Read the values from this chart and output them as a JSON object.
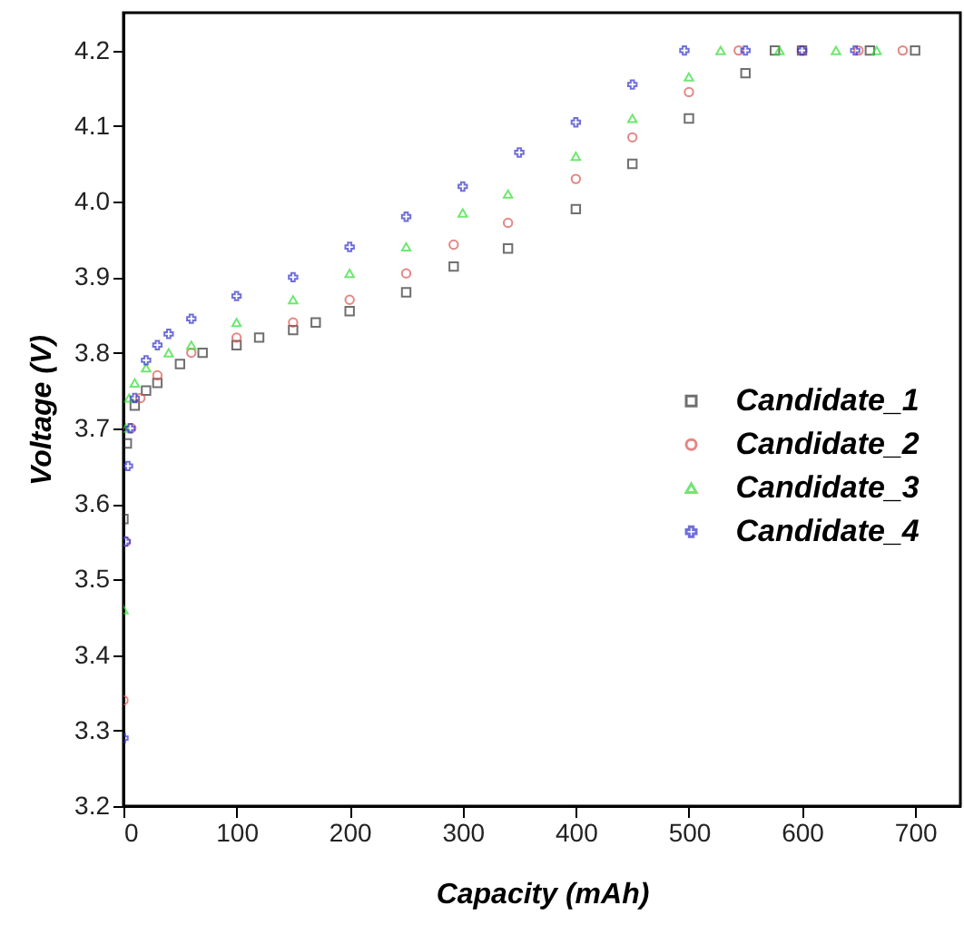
{
  "chart_data": {
    "type": "scatter",
    "xlabel": "Capacity (mAh)",
    "ylabel": "Voltage (V)",
    "xlim": [
      0,
      740
    ],
    "ylim": [
      3.2,
      4.25
    ],
    "xticks": [
      0,
      100,
      200,
      300,
      400,
      500,
      600,
      700
    ],
    "yticks": [
      3.2,
      3.3,
      3.4,
      3.5,
      3.6,
      3.7,
      3.8,
      3.9,
      {
        "value": 4,
        "label": "4.0"
      },
      4.1,
      4.2
    ],
    "grid": false,
    "legend": "right",
    "series": [
      {
        "name": "Candidate_1",
        "color": "#333333",
        "marker": "square",
        "x": [
          0,
          3,
          10,
          20,
          30,
          50,
          70,
          100,
          120,
          150,
          170,
          200,
          250,
          292,
          340,
          400,
          450,
          500,
          550,
          576,
          600,
          660,
          700
        ],
        "values": [
          3.58,
          3.68,
          3.73,
          3.75,
          3.76,
          3.785,
          3.8,
          3.81,
          3.82,
          3.83,
          3.84,
          3.855,
          3.88,
          3.914,
          3.938,
          3.99,
          4.05,
          4.11,
          4.17,
          4.2,
          4.2,
          4.2,
          4.2
        ]
      },
      {
        "name": "Candidate_2",
        "color": "#d9534f",
        "marker": "circle",
        "x": [
          0,
          2,
          7,
          15,
          30,
          60,
          100,
          150,
          200,
          250,
          292,
          340,
          400,
          450,
          500,
          544,
          600,
          650,
          689
        ],
        "values": [
          3.34,
          3.55,
          3.7,
          3.74,
          3.77,
          3.8,
          3.82,
          3.84,
          3.87,
          3.905,
          3.943,
          3.972,
          4.03,
          4.085,
          4.145,
          4.2,
          4.2,
          4.2,
          4.2
        ]
      },
      {
        "name": "Candidate_3",
        "color": "#33dd33",
        "marker": "triangle",
        "x": [
          0,
          2,
          5,
          10,
          20,
          40,
          60,
          100,
          150,
          200,
          250,
          300,
          340,
          400,
          450,
          500,
          528,
          580,
          630,
          666
        ],
        "values": [
          3.46,
          3.7,
          3.74,
          3.76,
          3.78,
          3.8,
          3.81,
          3.84,
          3.87,
          3.905,
          3.94,
          3.985,
          4.01,
          4.06,
          4.11,
          4.165,
          4.2,
          4.2,
          4.2,
          4.2
        ]
      },
      {
        "name": "Candidate_4",
        "color": "#3333cc",
        "marker": "cross",
        "x": [
          0,
          2,
          4,
          6,
          10,
          20,
          30,
          40,
          60,
          100,
          150,
          200,
          250,
          300,
          350,
          400,
          450,
          496,
          550,
          600,
          647
        ],
        "values": [
          3.29,
          3.55,
          3.65,
          3.7,
          3.74,
          3.79,
          3.81,
          3.825,
          3.845,
          3.875,
          3.9,
          3.94,
          3.98,
          4.02,
          4.065,
          4.105,
          4.155,
          4.2,
          4.2,
          4.2,
          4.2
        ]
      }
    ]
  }
}
